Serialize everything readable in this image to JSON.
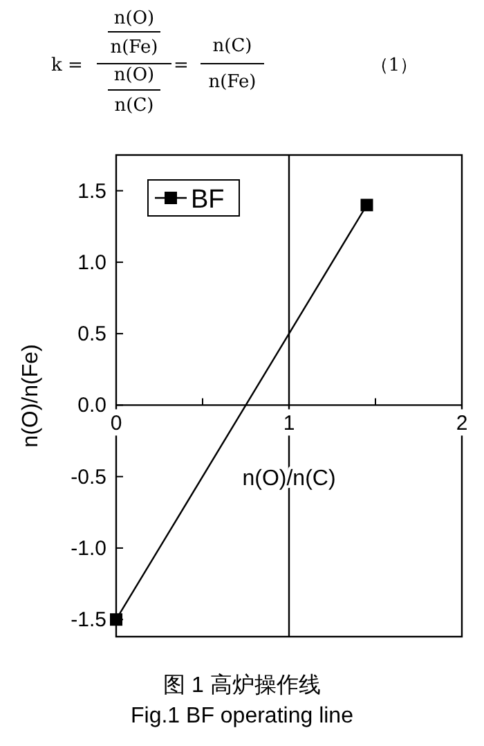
{
  "chart_data": {
    "type": "line",
    "xlabel": "n(O)/n(C)",
    "ylabel": "n(O)/n(Fe)",
    "series": [
      {
        "name": "BF",
        "color": "#000000",
        "x": [
          0,
          1.45
        ],
        "values": [
          -1.5,
          1.4
        ]
      }
    ],
    "xlim": [
      0,
      2
    ],
    "ylim": [
      -1.62,
      1.75
    ],
    "xticks": [
      {
        "value": 0,
        "label": "0"
      },
      {
        "value": 0.5,
        "label": null
      },
      {
        "value": 1,
        "label": "1"
      },
      {
        "value": 1.5,
        "label": null
      },
      {
        "value": 2,
        "label": "2"
      }
    ],
    "yticks": [
      {
        "value": -1.5,
        "label": "-1.5"
      },
      {
        "value": -1,
        "label": "-1.0"
      },
      {
        "value": -0.5,
        "label": "-0.5"
      },
      {
        "value": 0,
        "label": "0.0"
      },
      {
        "value": 0.5,
        "label": "0.5"
      },
      {
        "value": 1,
        "label": "1.0"
      },
      {
        "value": 1.5,
        "label": "1.5"
      }
    ],
    "ref_lines": [
      {
        "axis": "x",
        "value": 1,
        "label": null,
        "color": "#000000"
      }
    ],
    "marker": "square",
    "line_style": "solid",
    "grid": false,
    "legend": "top left",
    "annotations": [
      "k =",
      "n(O)",
      "n(Fe)",
      "n(O)",
      "n(C)",
      "=",
      "n(C)",
      "n(Fe)",
      "（1）",
      "图 1 高炉操作线",
      "Fig.1 BF operating line"
    ]
  }
}
